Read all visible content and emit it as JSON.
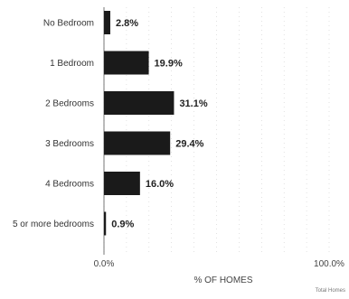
{
  "chart_data": {
    "type": "bar",
    "orientation": "horizontal",
    "categories": [
      "No Bedroom",
      "1 Bedroom",
      "2 Bedrooms",
      "3 Bedrooms",
      "4 Bedrooms",
      "5 or more bedrooms"
    ],
    "values": [
      2.8,
      19.9,
      31.1,
      29.4,
      16.0,
      0.9
    ],
    "value_labels": [
      "2.8%",
      "19.9%",
      "31.1%",
      "29.4%",
      "16.0%",
      "0.9%"
    ],
    "xlabel": "% OF HOMES",
    "xlim": [
      0,
      100
    ],
    "x_tick_labels": [
      "0.0%",
      "100.0%"
    ],
    "grid": true,
    "bar_color": "#1a1a1a",
    "credit": "Total Homes"
  }
}
